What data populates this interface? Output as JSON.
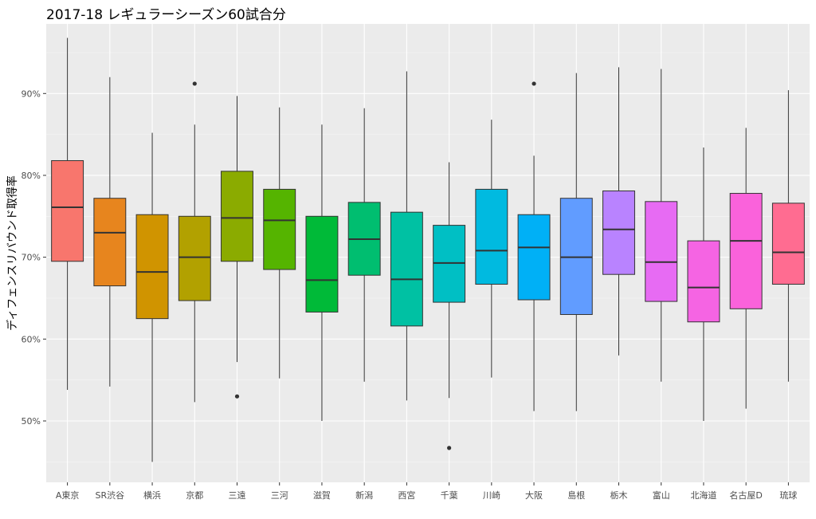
{
  "chart_data": {
    "type": "boxplot",
    "title": "2017-18 レギュラーシーズン60試合分",
    "xlabel": "",
    "ylabel": "ディフェンスリバウンド取得率",
    "ylim": [
      42.5,
      98.5
    ],
    "y_ticks": [
      50,
      60,
      70,
      80,
      90
    ],
    "y_tick_labels": [
      "50%",
      "60%",
      "70%",
      "80%",
      "90%"
    ],
    "grid": true,
    "legend": "none",
    "categories": [
      "A東京",
      "SR渋谷",
      "横浜",
      "京都",
      "三遠",
      "三河",
      "滋賀",
      "新潟",
      "西宮",
      "千葉",
      "川崎",
      "大阪",
      "島根",
      "栃木",
      "富山",
      "北海道",
      "名古屋D",
      "琉球"
    ],
    "boxes": [
      {
        "name": "A東京",
        "color": "#F8766D",
        "min": 53.8,
        "q1": 69.5,
        "median": 76.1,
        "q3": 81.8,
        "max": 96.8,
        "outliers": []
      },
      {
        "name": "SR渋谷",
        "color": "#E7851E",
        "min": 54.2,
        "q1": 66.5,
        "median": 73.0,
        "q3": 77.2,
        "max": 92.0,
        "outliers": []
      },
      {
        "name": "横浜",
        "color": "#D09400",
        "min": 45.0,
        "q1": 62.5,
        "median": 68.2,
        "q3": 75.2,
        "max": 85.2,
        "outliers": []
      },
      {
        "name": "京都",
        "color": "#B2A100",
        "min": 52.3,
        "q1": 64.7,
        "median": 70.0,
        "q3": 75.0,
        "max": 86.2,
        "outliers": [
          91.2
        ]
      },
      {
        "name": "三遠",
        "color": "#8BAB00",
        "min": 57.2,
        "q1": 69.5,
        "median": 74.8,
        "q3": 80.5,
        "max": 89.7,
        "outliers": [
          53.0
        ]
      },
      {
        "name": "三河",
        "color": "#55B400",
        "min": 55.2,
        "q1": 68.5,
        "median": 74.5,
        "q3": 78.3,
        "max": 88.3,
        "outliers": []
      },
      {
        "name": "滋賀",
        "color": "#00BA38",
        "min": 50.0,
        "q1": 63.3,
        "median": 67.2,
        "q3": 75.0,
        "max": 86.2,
        "outliers": []
      },
      {
        "name": "新潟",
        "color": "#00BE70",
        "min": 54.8,
        "q1": 67.8,
        "median": 72.2,
        "q3": 76.7,
        "max": 88.2,
        "outliers": []
      },
      {
        "name": "西宮",
        "color": "#00C1A3",
        "min": 52.5,
        "q1": 61.6,
        "median": 67.3,
        "q3": 75.5,
        "max": 92.7,
        "outliers": []
      },
      {
        "name": "千葉",
        "color": "#00BFC4",
        "min": 52.8,
        "q1": 64.5,
        "median": 69.3,
        "q3": 73.9,
        "max": 81.6,
        "outliers": [
          46.7
        ]
      },
      {
        "name": "川崎",
        "color": "#00BAE0",
        "min": 55.3,
        "q1": 66.7,
        "median": 70.8,
        "q3": 78.3,
        "max": 86.8,
        "outliers": []
      },
      {
        "name": "大阪",
        "color": "#00B0F6",
        "min": 51.2,
        "q1": 64.8,
        "median": 71.2,
        "q3": 75.2,
        "max": 82.4,
        "outliers": [
          91.2
        ]
      },
      {
        "name": "島根",
        "color": "#619CFF",
        "min": 51.2,
        "q1": 63.0,
        "median": 70.0,
        "q3": 77.2,
        "max": 92.5,
        "outliers": []
      },
      {
        "name": "栃木",
        "color": "#B983FF",
        "min": 58.0,
        "q1": 67.9,
        "median": 73.4,
        "q3": 78.1,
        "max": 93.2,
        "outliers": []
      },
      {
        "name": "富山",
        "color": "#E76BF3",
        "min": 54.8,
        "q1": 64.6,
        "median": 69.4,
        "q3": 76.8,
        "max": 93.0,
        "outliers": []
      },
      {
        "name": "北海道",
        "color": "#F564E3",
        "min": 50.0,
        "q1": 62.1,
        "median": 66.3,
        "q3": 72.0,
        "max": 83.4,
        "outliers": []
      },
      {
        "name": "名古屋D",
        "color": "#FA62DB",
        "min": 51.5,
        "q1": 63.7,
        "median": 72.0,
        "q3": 77.8,
        "max": 85.8,
        "outliers": []
      },
      {
        "name": "琉球",
        "color": "#FF6C91",
        "min": 54.8,
        "q1": 66.7,
        "median": 70.6,
        "q3": 76.6,
        "max": 90.4,
        "outliers": []
      }
    ],
    "colors": {
      "panel_background": "#EBEBEB",
      "grid_major": "#FFFFFF",
      "grid_minor": "#F5F5F5",
      "box_outline": "#333333",
      "tick_text": "#4D4D4D"
    }
  }
}
